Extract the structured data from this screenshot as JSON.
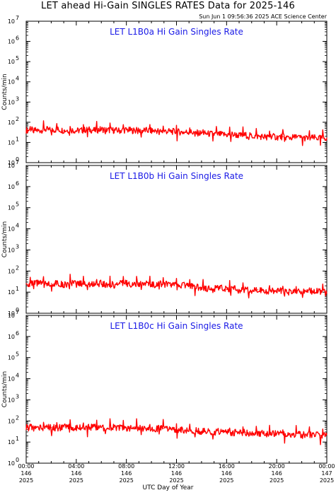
{
  "header": {
    "title": "LET ahead Hi-Gain SINGLES RATES Data for 2025-146",
    "timestamp": "Sun Jun  1 09:56:36 2025 ACE Science Center"
  },
  "colors": {
    "trace": "#ff0000",
    "panel_title": "#1a1ae6",
    "axes": "#000000"
  },
  "chart_data": [
    {
      "type": "line",
      "title": "LET L1B0a Hi Gain Singles Rate",
      "ylabel": "Counts/min",
      "yscale": "log",
      "ylim": [
        1,
        10000000
      ],
      "yticks": [
        {
          "base": "10",
          "exp": "0"
        },
        {
          "base": "10",
          "exp": "1"
        },
        {
          "base": "10",
          "exp": "2"
        },
        {
          "base": "10",
          "exp": "3"
        },
        {
          "base": "10",
          "exp": "4"
        },
        {
          "base": "10",
          "exp": "5"
        },
        {
          "base": "10",
          "exp": "6"
        },
        {
          "base": "10",
          "exp": "7"
        }
      ],
      "xlim": [
        0,
        24
      ],
      "x": [
        0,
        0.5,
        1,
        1.5,
        2,
        2.5,
        3,
        3.5,
        4,
        4.5,
        5,
        5.5,
        6,
        6.5,
        7,
        7.5,
        8,
        8.5,
        9,
        9.5,
        10,
        10.5,
        11,
        11.5,
        12,
        12.5,
        13,
        13.5,
        14,
        14.5,
        15,
        15.5,
        16,
        16.5,
        17,
        17.5,
        18,
        18.5,
        19,
        19.5,
        20,
        20.5,
        21,
        21.5,
        22,
        22.5,
        23,
        23.5,
        24
      ],
      "values": [
        40,
        42,
        38,
        45,
        40,
        44,
        39,
        42,
        38,
        40,
        43,
        39,
        45,
        41,
        40,
        38,
        42,
        39,
        36,
        40,
        37,
        38,
        36,
        35,
        34,
        32,
        33,
        30,
        28,
        27,
        26,
        25,
        24,
        25,
        22,
        23,
        21,
        20,
        19,
        21,
        18,
        19,
        17,
        18,
        17,
        16,
        17,
        16,
        17
      ]
    },
    {
      "type": "line",
      "title": "LET L1B0b Hi Gain Singles Rate",
      "ylabel": "Counts/min",
      "yscale": "log",
      "ylim": [
        1,
        10000000
      ],
      "yticks": [
        {
          "base": "10",
          "exp": "0"
        },
        {
          "base": "10",
          "exp": "1"
        },
        {
          "base": "10",
          "exp": "2"
        },
        {
          "base": "10",
          "exp": "3"
        },
        {
          "base": "10",
          "exp": "4"
        },
        {
          "base": "10",
          "exp": "5"
        },
        {
          "base": "10",
          "exp": "6"
        },
        {
          "base": "10",
          "exp": "7"
        }
      ],
      "xlim": [
        0,
        24
      ],
      "x": [
        0,
        0.5,
        1,
        1.5,
        2,
        2.5,
        3,
        3.5,
        4,
        4.5,
        5,
        5.5,
        6,
        6.5,
        7,
        7.5,
        8,
        8.5,
        9,
        9.5,
        10,
        10.5,
        11,
        11.5,
        12,
        12.5,
        13,
        13.5,
        14,
        14.5,
        15,
        15.5,
        16,
        16.5,
        17,
        17.5,
        18,
        18.5,
        19,
        19.5,
        20,
        20.5,
        21,
        21.5,
        22,
        22.5,
        23,
        23.5,
        24
      ],
      "values": [
        25,
        24,
        27,
        23,
        26,
        25,
        22,
        26,
        24,
        27,
        23,
        25,
        26,
        24,
        22,
        25,
        27,
        23,
        24,
        26,
        22,
        25,
        24,
        21,
        23,
        22,
        20,
        18,
        16,
        15,
        14,
        16,
        13,
        15,
        12,
        14,
        11,
        13,
        12,
        11,
        13,
        12,
        10,
        12,
        11,
        10,
        12,
        11,
        9
      ]
    },
    {
      "type": "line",
      "title": "LET L1B0c Hi Gain Singles Rate",
      "ylabel": "Counts/min",
      "yscale": "log",
      "ylim": [
        1,
        10000000
      ],
      "yticks": [
        {
          "base": "10",
          "exp": "0"
        },
        {
          "base": "10",
          "exp": "1"
        },
        {
          "base": "10",
          "exp": "2"
        },
        {
          "base": "10",
          "exp": "3"
        },
        {
          "base": "10",
          "exp": "4"
        },
        {
          "base": "10",
          "exp": "5"
        },
        {
          "base": "10",
          "exp": "6"
        },
        {
          "base": "10",
          "exp": "7"
        }
      ],
      "xlim": [
        0,
        24
      ],
      "x": [
        0,
        0.5,
        1,
        1.5,
        2,
        2.5,
        3,
        3.5,
        4,
        4.5,
        5,
        5.5,
        6,
        6.5,
        7,
        7.5,
        8,
        8.5,
        9,
        9.5,
        10,
        10.5,
        11,
        11.5,
        12,
        12.5,
        13,
        13.5,
        14,
        14.5,
        15,
        15.5,
        16,
        16.5,
        17,
        17.5,
        18,
        18.5,
        19,
        19.5,
        20,
        20.5,
        21,
        21.5,
        22,
        22.5,
        23,
        23.5,
        24
      ],
      "values": [
        48,
        50,
        46,
        52,
        49,
        47,
        51,
        48,
        50,
        46,
        49,
        52,
        48,
        47,
        50,
        46,
        48,
        45,
        47,
        44,
        46,
        43,
        45,
        42,
        40,
        38,
        36,
        34,
        33,
        31,
        30,
        32,
        29,
        28,
        27,
        29,
        26,
        27,
        25,
        24,
        26,
        23,
        24,
        22,
        23,
        24,
        22,
        21,
        22
      ]
    }
  ],
  "xaxis": {
    "label": "UTC Day of Year",
    "ticks": [
      {
        "x": 0,
        "time": "00:00",
        "doy": "146",
        "year": "2025"
      },
      {
        "x": 4,
        "time": "04:00",
        "doy": "146",
        "year": "2025"
      },
      {
        "x": 8,
        "time": "08:00",
        "doy": "146",
        "year": "2025"
      },
      {
        "x": 12,
        "time": "12:00",
        "doy": "146",
        "year": "2025"
      },
      {
        "x": 16,
        "time": "16:00",
        "doy": "146",
        "year": "2025"
      },
      {
        "x": 20,
        "time": "20:00",
        "doy": "146",
        "year": "2025"
      },
      {
        "x": 24,
        "time": "00:00",
        "doy": "147",
        "year": "2025"
      }
    ]
  }
}
